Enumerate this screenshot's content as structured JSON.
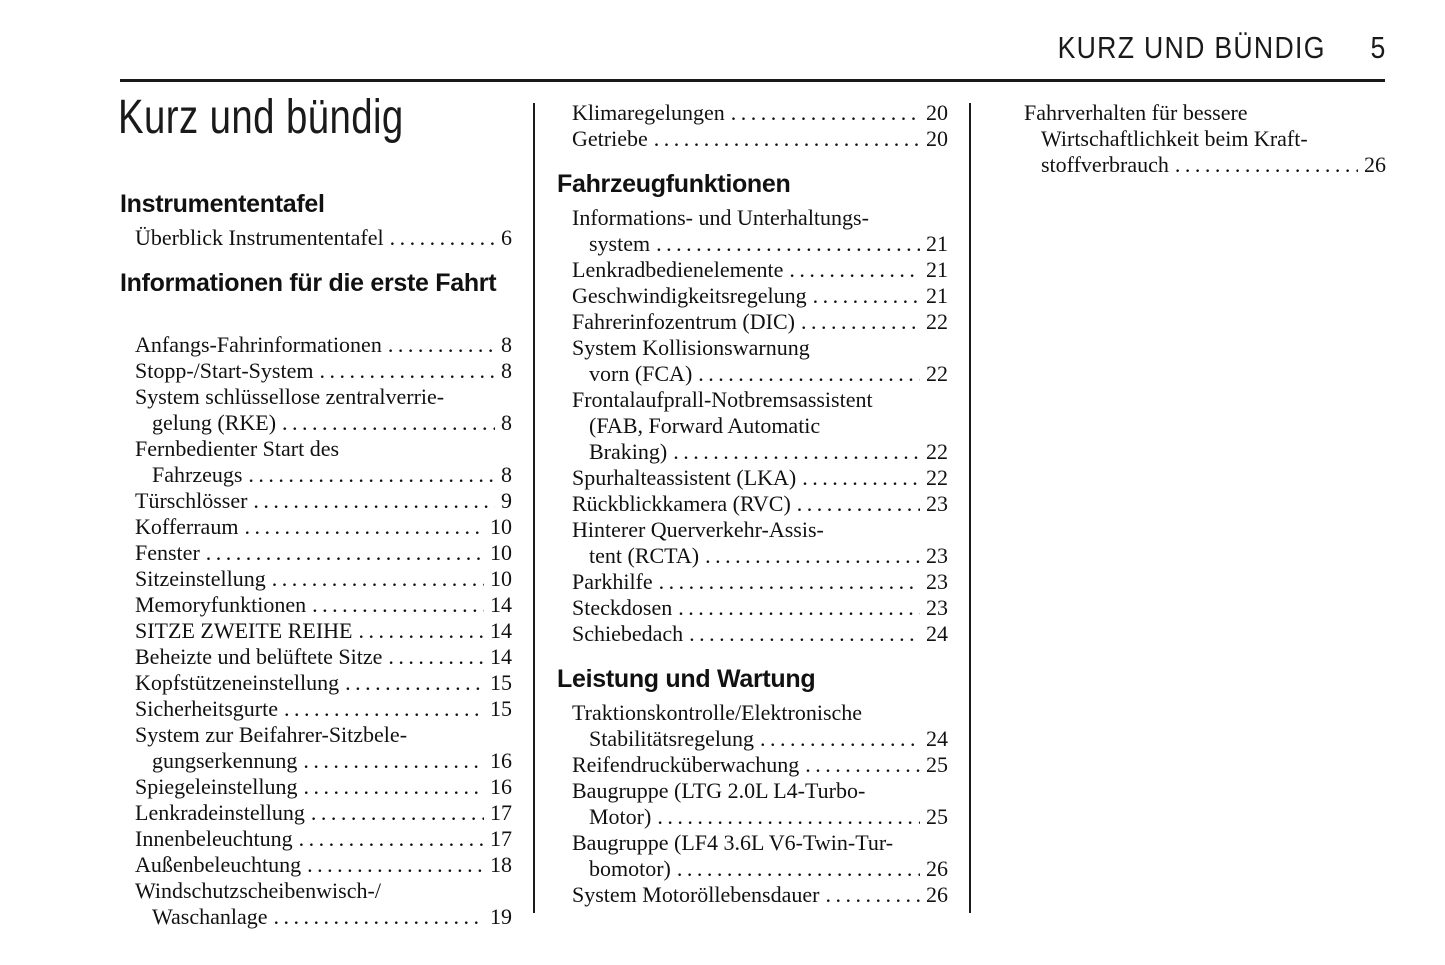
{
  "header": {
    "title": "KURZ UND BÜNDIG",
    "page_number": "5"
  },
  "title": "Kurz und bündig",
  "columns": [
    {
      "blocks": [
        {
          "type": "heading",
          "text": "Instrumententafel"
        },
        {
          "type": "entries",
          "items": [
            {
              "lines": [
                "Überblick Instrumententafel"
              ],
              "page": "6"
            }
          ]
        },
        {
          "type": "heading",
          "text": "Informationen für die erste Fahrt"
        },
        {
          "type": "entries",
          "items": [
            {
              "lines": [
                "Anfangs-Fahrinformationen"
              ],
              "page": "8"
            },
            {
              "lines": [
                "Stopp-/Start-System"
              ],
              "page": "8"
            },
            {
              "lines": [
                "System schlüssellose zentralverrie-",
                "gelung (RKE)"
              ],
              "page": "8"
            },
            {
              "lines": [
                "Fernbedienter Start des",
                "Fahrzeugs"
              ],
              "page": "8"
            },
            {
              "lines": [
                "Türschlösser"
              ],
              "page": "9"
            },
            {
              "lines": [
                "Kofferraum"
              ],
              "page": "10"
            },
            {
              "lines": [
                "Fenster"
              ],
              "page": "10"
            },
            {
              "lines": [
                "Sitzeinstellung"
              ],
              "page": "10"
            },
            {
              "lines": [
                "Memoryfunktionen"
              ],
              "page": "14"
            },
            {
              "lines": [
                "SITZE ZWEITE REIHE"
              ],
              "page": "14"
            },
            {
              "lines": [
                "Beheizte und belüftete Sitze"
              ],
              "page": "14"
            },
            {
              "lines": [
                "Kopfstützeneinstellung"
              ],
              "page": "15"
            },
            {
              "lines": [
                "Sicherheitsgurte"
              ],
              "page": "15"
            },
            {
              "lines": [
                "System zur Beifahrer-Sitzbele-",
                "gungserkennung"
              ],
              "page": "16"
            },
            {
              "lines": [
                "Spiegeleinstellung"
              ],
              "page": "16"
            },
            {
              "lines": [
                "Lenkradeinstellung"
              ],
              "page": "17"
            },
            {
              "lines": [
                "Innenbeleuchtung"
              ],
              "page": "17"
            },
            {
              "lines": [
                "Außenbeleuchtung"
              ],
              "page": "18"
            },
            {
              "lines": [
                "Windschutzscheibenwisch-/",
                "Waschanlage"
              ],
              "page": "19"
            }
          ]
        }
      ]
    },
    {
      "blocks": [
        {
          "type": "entries",
          "items": [
            {
              "lines": [
                "Klimaregelungen"
              ],
              "page": "20"
            },
            {
              "lines": [
                "Getriebe"
              ],
              "page": "20"
            }
          ]
        },
        {
          "type": "heading",
          "text": "Fahrzeugfunktionen"
        },
        {
          "type": "entries",
          "items": [
            {
              "lines": [
                "Informations- und Unterhaltungs-",
                "system"
              ],
              "page": "21"
            },
            {
              "lines": [
                "Lenkradbedienelemente"
              ],
              "page": "21"
            },
            {
              "lines": [
                "Geschwindigkeitsregelung"
              ],
              "page": "21"
            },
            {
              "lines": [
                "Fahrerinfozentrum (DIC)"
              ],
              "page": "22"
            },
            {
              "lines": [
                "System Kollisionswarnung",
                "vorn (FCA)"
              ],
              "page": "22"
            },
            {
              "lines": [
                "Frontalaufprall-Notbremsassistent",
                "(FAB, Forward Automatic",
                "Braking)"
              ],
              "page": "22"
            },
            {
              "lines": [
                "Spurhalteassistent (LKA)"
              ],
              "page": "22"
            },
            {
              "lines": [
                "Rückblickkamera (RVC)"
              ],
              "page": "23"
            },
            {
              "lines": [
                "Hinterer Querverkehr-Assis-",
                "tent (RCTA)"
              ],
              "page": "23"
            },
            {
              "lines": [
                "Parkhilfe"
              ],
              "page": "23"
            },
            {
              "lines": [
                "Steckdosen"
              ],
              "page": "23"
            },
            {
              "lines": [
                "Schiebedach"
              ],
              "page": "24"
            }
          ]
        },
        {
          "type": "heading",
          "text": "Leistung und Wartung"
        },
        {
          "type": "entries",
          "items": [
            {
              "lines": [
                "Traktionskontrolle/Elektronische",
                "Stabilitätsregelung"
              ],
              "page": "24"
            },
            {
              "lines": [
                "Reifendrucküberwachung"
              ],
              "page": "25"
            },
            {
              "lines": [
                "Baugruppe (LTG 2.0L L4-Turbo-",
                "Motor)"
              ],
              "page": "25"
            },
            {
              "lines": [
                "Baugruppe (LF4 3.6L V6-Twin-Tur-",
                "bomotor)"
              ],
              "page": "26"
            },
            {
              "lines": [
                "System Motoröllebensdauer"
              ],
              "page": "26"
            }
          ]
        }
      ]
    },
    {
      "blocks": [
        {
          "type": "entries",
          "items": [
            {
              "lines": [
                "Fahrverhalten für bessere",
                "Wirtschaftlichkeit beim Kraft-",
                "stoffverbrauch"
              ],
              "page": "26"
            }
          ]
        }
      ]
    }
  ],
  "colors": {
    "ink": "#111111",
    "background": "#ffffff"
  }
}
